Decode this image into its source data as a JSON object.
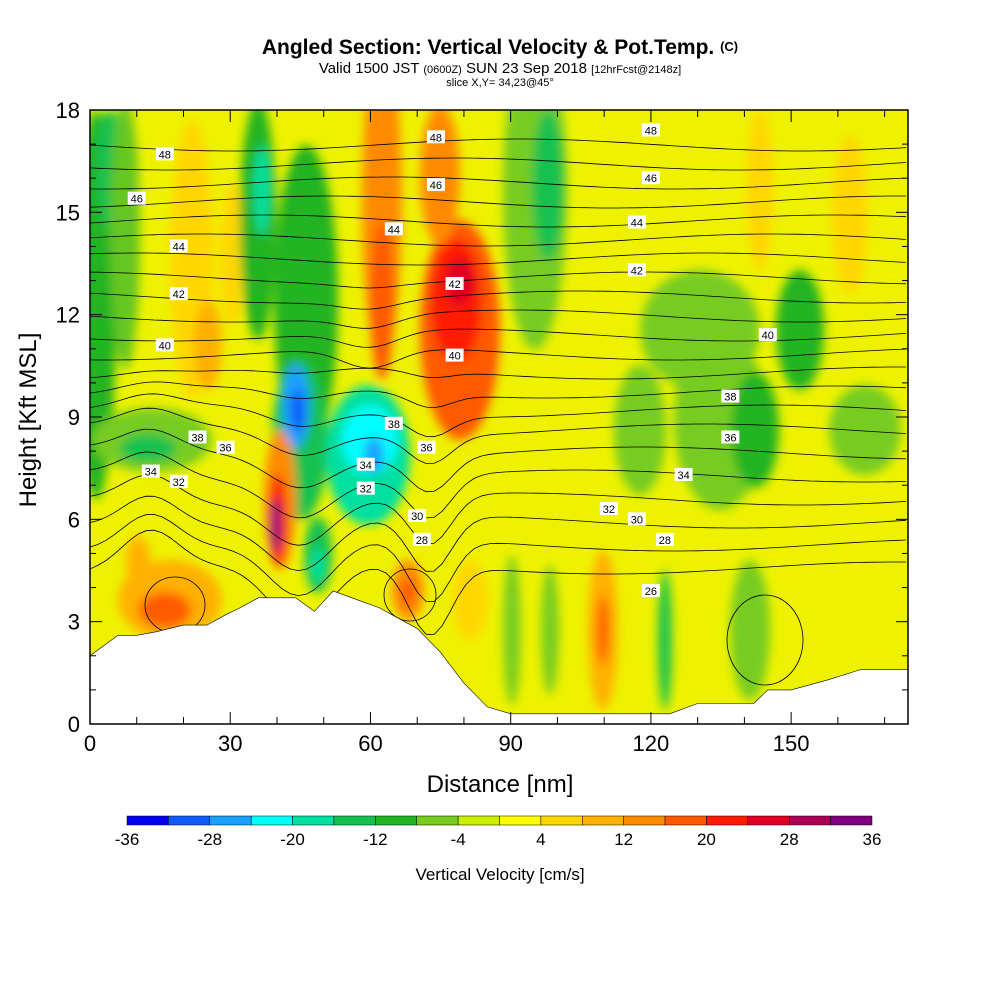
{
  "title": {
    "main": "Angled Section: Vertical Velocity & Pot.Temp.",
    "copyright": "(C)",
    "valid_prefix": "Valid 1500 JST",
    "zulu": "(0600Z)",
    "valid_date": "SUN 23 Sep 2018",
    "forecast": "[12hrFcst@2148z]",
    "slice": "slice X,Y= 34,23@45°"
  },
  "chart_data": {
    "type": "heatmap",
    "xlabel": "Distance [nm]",
    "ylabel": "Height [Kft MSL]",
    "xlim": [
      0,
      175
    ],
    "ylim": [
      0,
      18
    ],
    "x_ticks": [
      0,
      30,
      60,
      90,
      120,
      150
    ],
    "y_ticks": [
      0,
      3,
      6,
      9,
      12,
      15,
      18
    ],
    "colorbar": {
      "label": "Vertical Velocity [cm/s]",
      "tick_labels": [
        "-36",
        "-28",
        "-20",
        "-12",
        "-4",
        "4",
        "12",
        "20",
        "28",
        "36"
      ],
      "tick_values": [
        -36,
        -28,
        -20,
        -12,
        -4,
        4,
        12,
        20,
        28,
        36
      ],
      "levels": [
        -36,
        -32,
        -28,
        -24,
        -20,
        -16,
        -12,
        -8,
        -4,
        0,
        4,
        8,
        12,
        16,
        20,
        24,
        28,
        32,
        36
      ],
      "colors": [
        "#0000ee",
        "#0f5cf7",
        "#1aa1ff",
        "#00ffff",
        "#00e0a0",
        "#12c150",
        "#22b422",
        "#77cc22",
        "#ccee00",
        "#ffff00",
        "#ffd700",
        "#ffb000",
        "#ff8a00",
        "#ff5a00",
        "#ff1a00",
        "#dd0022",
        "#aa0055",
        "#800080"
      ]
    },
    "terrain": [
      [
        0,
        2.0
      ],
      [
        3,
        2.3
      ],
      [
        6,
        2.6
      ],
      [
        10,
        2.6
      ],
      [
        14,
        2.7
      ],
      [
        20,
        2.9
      ],
      [
        25,
        2.9
      ],
      [
        29,
        3.2
      ],
      [
        32,
        3.4
      ],
      [
        36,
        3.7
      ],
      [
        40,
        3.7
      ],
      [
        44,
        3.7
      ],
      [
        48,
        3.3
      ],
      [
        52,
        3.9
      ],
      [
        58,
        3.6
      ],
      [
        62,
        3.4
      ],
      [
        66,
        3.1
      ],
      [
        70,
        2.8
      ],
      [
        75,
        2.1
      ],
      [
        80,
        1.2
      ],
      [
        85,
        0.5
      ],
      [
        90,
        0.3
      ],
      [
        100,
        0.3
      ],
      [
        110,
        0.3
      ],
      [
        120,
        0.3
      ],
      [
        124,
        0.3
      ],
      [
        130,
        0.6
      ],
      [
        136,
        0.6
      ],
      [
        142,
        0.6
      ],
      [
        145,
        1.0
      ],
      [
        150,
        1.0
      ],
      [
        158,
        1.3
      ],
      [
        165,
        1.6
      ],
      [
        175,
        1.6
      ]
    ],
    "contour_labels": [
      {
        "x": 16,
        "y": 16.7,
        "text": "48"
      },
      {
        "x": 10,
        "y": 15.4,
        "text": "46"
      },
      {
        "x": 19,
        "y": 14.0,
        "text": "44"
      },
      {
        "x": 19,
        "y": 12.6,
        "text": "42"
      },
      {
        "x": 16,
        "y": 11.1,
        "text": "40"
      },
      {
        "x": 23,
        "y": 8.4,
        "text": "38"
      },
      {
        "x": 29,
        "y": 8.1,
        "text": "36"
      },
      {
        "x": 13,
        "y": 7.4,
        "text": "34"
      },
      {
        "x": 19,
        "y": 7.1,
        "text": "32"
      },
      {
        "x": 74,
        "y": 17.2,
        "text": "48"
      },
      {
        "x": 74,
        "y": 15.8,
        "text": "46"
      },
      {
        "x": 65,
        "y": 14.5,
        "text": "44"
      },
      {
        "x": 78,
        "y": 12.9,
        "text": "42"
      },
      {
        "x": 78,
        "y": 10.8,
        "text": "40"
      },
      {
        "x": 65,
        "y": 8.8,
        "text": "38"
      },
      {
        "x": 72,
        "y": 8.1,
        "text": "36"
      },
      {
        "x": 59,
        "y": 7.6,
        "text": "34"
      },
      {
        "x": 59,
        "y": 6.9,
        "text": "32"
      },
      {
        "x": 70,
        "y": 6.1,
        "text": "30"
      },
      {
        "x": 71,
        "y": 5.4,
        "text": "28"
      },
      {
        "x": 120,
        "y": 17.4,
        "text": "48"
      },
      {
        "x": 120,
        "y": 16.0,
        "text": "46"
      },
      {
        "x": 117,
        "y": 14.7,
        "text": "44"
      },
      {
        "x": 117,
        "y": 13.3,
        "text": "42"
      },
      {
        "x": 145,
        "y": 11.4,
        "text": "40"
      },
      {
        "x": 137,
        "y": 9.6,
        "text": "38"
      },
      {
        "x": 137,
        "y": 8.4,
        "text": "36"
      },
      {
        "x": 127,
        "y": 7.3,
        "text": "34"
      },
      {
        "x": 111,
        "y": 6.3,
        "text": "32"
      },
      {
        "x": 117,
        "y": 6.0,
        "text": "30"
      },
      {
        "x": 123,
        "y": 5.4,
        "text": "28"
      },
      {
        "x": 120,
        "y": 3.9,
        "text": "26"
      }
    ]
  }
}
